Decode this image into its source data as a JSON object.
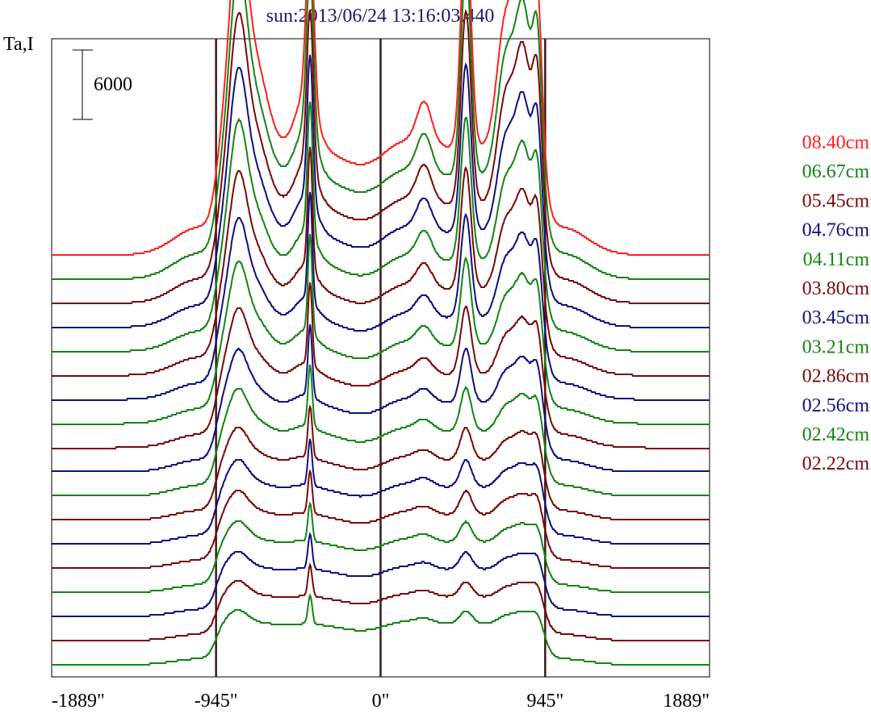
{
  "chart_data": {
    "type": "line",
    "title": "sun:2013/06/24 13:16:03.440",
    "ylabel": "Ta,I",
    "scale_bar_label": "6000",
    "x_ticks": [
      "-1889\"",
      "-945\"",
      "0\"",
      "945\"",
      "1889\""
    ],
    "x_tick_values": [
      -1889,
      -945,
      0,
      945,
      1889
    ],
    "xlim": [
      -1889,
      1889
    ],
    "vertical_lines": [
      -945,
      0,
      945
    ],
    "series": [
      {
        "name": "08.40cm",
        "color": "#ff2020",
        "amp": 1.0,
        "peak": 1.0,
        "sharp": 0.0,
        "base_steps": [
          0,
          0,
          0,
          0
        ]
      },
      {
        "name": "06.67cm",
        "color": "#158515",
        "amp": 0.96,
        "peak": 0.95,
        "sharp": 0.15,
        "base_steps": [
          0,
          0,
          0,
          0
        ]
      },
      {
        "name": "05.45cm",
        "color": "#7a0a0a",
        "amp": 0.92,
        "peak": 0.9,
        "sharp": 0.35,
        "base_steps": [
          0,
          1,
          0,
          1
        ]
      },
      {
        "name": "04.76cm",
        "color": "#101080",
        "amp": 0.88,
        "peak": 0.8,
        "sharp": 0.55,
        "base_steps": [
          1,
          0,
          1,
          0
        ]
      },
      {
        "name": "04.11cm",
        "color": "#158515",
        "amp": 0.84,
        "peak": 0.7,
        "sharp": 0.7,
        "base_steps": [
          0,
          1,
          1,
          0
        ]
      },
      {
        "name": "03.80cm",
        "color": "#7a0a0a",
        "amp": 0.8,
        "peak": 0.6,
        "sharp": 0.85,
        "base_steps": [
          1,
          1,
          0,
          1
        ]
      },
      {
        "name": "03.45cm",
        "color": "#101080",
        "amp": 0.76,
        "peak": 0.52,
        "sharp": 0.95,
        "base_steps": [
          0,
          1,
          0,
          1
        ]
      },
      {
        "name": "03.21cm",
        "color": "#158515",
        "amp": 0.72,
        "peak": 0.45,
        "sharp": 1.0,
        "base_steps": [
          1,
          0,
          1,
          1
        ]
      },
      {
        "name": "02.86cm",
        "color": "#7a0a0a",
        "amp": 0.68,
        "peak": 0.35,
        "sharp": 1.0,
        "base_steps": [
          0,
          1,
          1,
          0
        ]
      },
      {
        "name": "02.56cm",
        "color": "#101080",
        "amp": 0.64,
        "peak": 0.28,
        "sharp": 1.0,
        "base_steps": [
          1,
          0,
          0,
          1
        ]
      },
      {
        "name": "02.42cm",
        "color": "#158515",
        "amp": 0.6,
        "peak": 0.22,
        "sharp": 1.0,
        "base_steps": [
          0,
          1,
          0,
          1
        ]
      },
      {
        "name": "02.22cm",
        "color": "#7a0a0a",
        "amp": 0.56,
        "peak": 0.15,
        "sharp": 1.0,
        "base_steps": [
          1,
          1,
          0,
          0
        ]
      }
    ],
    "extra_unlabeled_traces": {
      "count": 6,
      "colors": [
        "#101080",
        "#7a0a0a",
        "#158515",
        "#101080",
        "#7a0a0a",
        "#158515"
      ],
      "amp": [
        0.53,
        0.5,
        0.47,
        0.44,
        0.41,
        0.38
      ],
      "peak": [
        0.12,
        0.1,
        0.08,
        0.06,
        0.05,
        0.04
      ]
    },
    "grid": false,
    "legend_placement": "right"
  }
}
